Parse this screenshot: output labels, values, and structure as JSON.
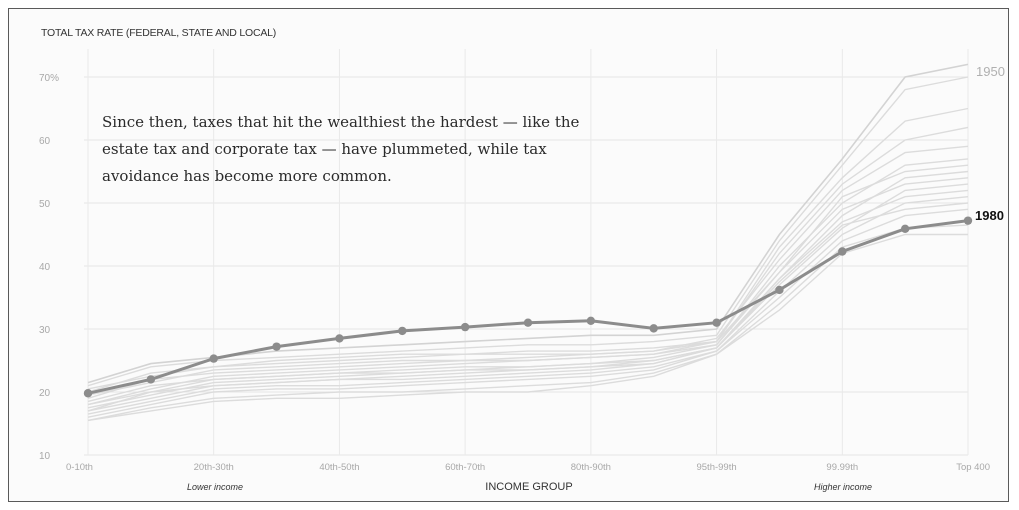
{
  "chart_data": {
    "type": "line",
    "title": "TOTAL TAX RATE (FEDERAL, STATE AND LOCAL)",
    "xlabel": "INCOME GROUP",
    "ylabel": "",
    "ylim": [
      10,
      72
    ],
    "y_ticks": [
      "70%",
      "60",
      "50",
      "40",
      "30",
      "20",
      "10"
    ],
    "x_tick_labels": [
      "0-10th",
      "20th-30th",
      "40th-50th",
      "60th-70th",
      "80th-90th",
      "95th-99th",
      "99.99th",
      "Top 400"
    ],
    "x_band_labels": [
      "Lower income",
      "Higher income"
    ],
    "annotation": [
      "Since then, taxes that hit the wealthiest the hardest — like the",
      "estate tax and corporate tax — have plummeted, while tax",
      "avoidance has become more common."
    ],
    "grid": true,
    "series": [
      {
        "name": "1980",
        "highlighted": true,
        "values": [
          19.8,
          22.0,
          25.3,
          27.2,
          28.5,
          29.7,
          30.3,
          31.0,
          31.3,
          30.1,
          31.0,
          36.2,
          42.3,
          45.9,
          47.2
        ]
      },
      {
        "name": "1950",
        "highlighted": false,
        "values": [
          21.5,
          24.5,
          25.5,
          26.5,
          27.0,
          27.5,
          28.0,
          28.5,
          29.0,
          29.0,
          30.0,
          45.0,
          57.0,
          70.0,
          72.0
        ]
      }
    ],
    "background_series": [
      [
        21.0,
        24.0,
        25.0,
        25.5,
        26.0,
        26.5,
        27.0,
        27.5,
        27.5,
        28.0,
        29.0,
        44.0,
        56.0,
        68.0,
        70.0
      ],
      [
        20.0,
        23.0,
        24.0,
        24.5,
        25.0,
        25.5,
        26.0,
        26.5,
        26.5,
        27.0,
        28.0,
        43.0,
        54.0,
        63.0,
        65.0
      ],
      [
        19.0,
        22.0,
        23.0,
        23.5,
        24.0,
        24.5,
        25.0,
        25.5,
        26.0,
        26.5,
        28.0,
        42.0,
        53.0,
        60.0,
        62.0
      ],
      [
        18.0,
        20.5,
        22.5,
        23.0,
        23.5,
        24.0,
        24.5,
        25.0,
        25.5,
        26.0,
        27.5,
        40.0,
        50.0,
        56.0,
        57.0
      ],
      [
        17.5,
        19.5,
        21.5,
        22.0,
        22.5,
        23.0,
        23.5,
        24.0,
        24.5,
        25.0,
        27.0,
        38.0,
        48.0,
        54.0,
        55.0
      ],
      [
        17.0,
        19.0,
        21.0,
        21.5,
        22.0,
        22.5,
        23.0,
        23.5,
        24.0,
        24.5,
        27.0,
        37.0,
        46.0,
        52.0,
        53.0
      ],
      [
        16.5,
        18.5,
        20.5,
        21.0,
        21.0,
        21.5,
        22.0,
        22.5,
        23.0,
        24.0,
        26.5,
        36.0,
        45.0,
        50.0,
        51.0
      ],
      [
        16.0,
        18.0,
        20.0,
        20.5,
        20.5,
        21.0,
        21.5,
        22.0,
        22.5,
        23.5,
        26.5,
        35.0,
        44.0,
        48.0,
        49.0
      ],
      [
        15.5,
        17.5,
        19.0,
        19.5,
        20.0,
        20.0,
        20.5,
        21.0,
        21.5,
        23.0,
        26.0,
        34.0,
        43.0,
        46.0,
        46.5
      ],
      [
        15.5,
        17.0,
        18.5,
        19.0,
        19.0,
        19.5,
        20.0,
        20.0,
        21.0,
        22.5,
        26.0,
        33.0,
        42.0,
        45.0,
        45.0
      ],
      [
        20.5,
        22.5,
        24.0,
        25.0,
        25.5,
        26.0,
        26.0,
        26.0,
        26.0,
        26.5,
        28.5,
        41.0,
        52.0,
        58.0,
        59.0
      ],
      [
        19.5,
        21.5,
        23.5,
        24.0,
        24.5,
        25.0,
        25.0,
        25.0,
        25.5,
        26.0,
        28.0,
        39.0,
        51.0,
        55.0,
        56.0
      ],
      [
        18.5,
        21.0,
        22.0,
        22.5,
        23.0,
        23.5,
        24.0,
        24.0,
        24.5,
        25.5,
        27.5,
        39.0,
        49.0,
        53.0,
        54.0
      ],
      [
        17.0,
        20.0,
        22.0,
        22.5,
        23.0,
        23.0,
        23.5,
        23.5,
        24.0,
        25.0,
        27.0,
        38.0,
        47.0,
        51.0,
        52.0
      ],
      [
        18.0,
        20.0,
        21.0,
        21.5,
        22.0,
        22.0,
        22.5,
        23.0,
        23.5,
        24.5,
        27.0,
        37.5,
        46.5,
        49.0,
        50.0
      ]
    ]
  }
}
